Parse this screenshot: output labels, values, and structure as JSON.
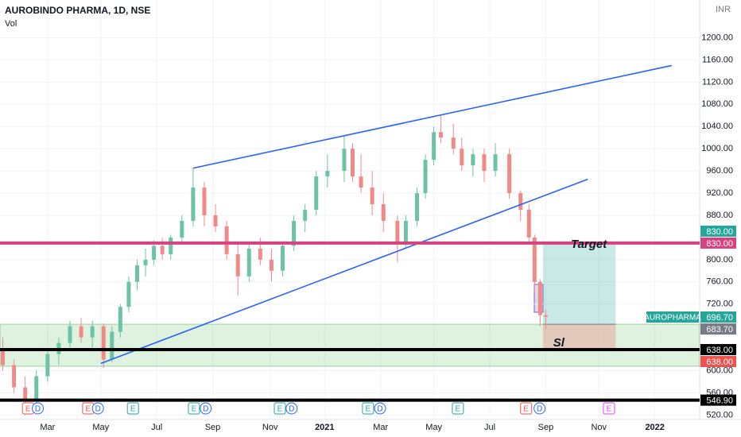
{
  "chart_data": {
    "type": "candlestick",
    "title": "AUROBINDO PHARMA, 1D, NSE",
    "subtitle": "Vol",
    "currency": "INR",
    "xlim": [
      -1.7,
      23.3
    ],
    "ylim": [
      512,
      1268
    ],
    "xticks": [
      {
        "value": 0,
        "label": "Mar"
      },
      {
        "value": 1.9,
        "label": "May"
      },
      {
        "value": 3.9,
        "label": "Jul"
      },
      {
        "value": 5.9,
        "label": "Sep"
      },
      {
        "value": 7.95,
        "label": "Nov"
      },
      {
        "value": 9.9,
        "label": "2021"
      },
      {
        "value": 11.9,
        "label": "Mar"
      },
      {
        "value": 13.8,
        "label": "May"
      },
      {
        "value": 15.8,
        "label": "Jul"
      },
      {
        "value": 17.8,
        "label": "Sep"
      },
      {
        "value": 19.7,
        "label": "Nov"
      },
      {
        "value": 21.7,
        "label": "2022"
      }
    ],
    "yticks": [
      {
        "value": 1200,
        "label": "1200.00"
      },
      {
        "value": 1160,
        "label": "1160.00"
      },
      {
        "value": 1120,
        "label": "1120.00"
      },
      {
        "value": 1080,
        "label": "1080.00"
      },
      {
        "value": 1040,
        "label": "1040.00"
      },
      {
        "value": 1000,
        "label": "1000.00"
      },
      {
        "value": 960,
        "label": "960.00"
      },
      {
        "value": 920,
        "label": "920.00"
      },
      {
        "value": 880,
        "label": "880.00"
      },
      {
        "value": 800,
        "label": "800.00"
      },
      {
        "value": 760,
        "label": "760.00"
      },
      {
        "value": 720,
        "label": "720.00"
      },
      {
        "value": 600,
        "label": "600.00"
      },
      {
        "value": 560,
        "label": "560.00"
      },
      {
        "value": 520,
        "label": "520.00"
      }
    ],
    "up_color": "#6cc3a5",
    "down_color": "#ef8a88",
    "x": [
      -1.6,
      -1.2,
      -0.8,
      -0.4,
      0.0,
      0.4,
      0.8,
      1.2,
      1.6,
      2.0,
      2.3,
      2.6,
      2.9,
      3.2,
      3.5,
      3.8,
      4.1,
      4.4,
      4.8,
      5.2,
      5.6,
      6.0,
      6.4,
      6.8,
      7.2,
      7.6,
      8.0,
      8.4,
      8.8,
      9.2,
      9.6,
      10.0,
      10.6,
      10.9,
      11.2,
      11.6,
      12.0,
      12.5,
      12.8,
      13.2,
      13.5,
      13.8,
      14.05,
      14.5,
      14.8,
      15.2,
      15.6,
      16.0,
      16.5,
      16.9,
      17.2,
      17.4,
      17.6,
      17.8
    ],
    "open": [
      640,
      610,
      570,
      545,
      590,
      630,
      650,
      680,
      660,
      680,
      620,
      670,
      715,
      760,
      790,
      800,
      825,
      810,
      840,
      870,
      930,
      880,
      860,
      810,
      770,
      820,
      800,
      780,
      825,
      870,
      890,
      950,
      960,
      1000,
      950,
      930,
      900,
      870,
      830,
      870,
      920,
      980,
      1030,
      1020,
      1000,
      970,
      990,
      960,
      990,
      920,
      890,
      840,
      760,
      700
    ],
    "high": [
      660,
      620,
      590,
      600,
      640,
      660,
      690,
      695,
      690,
      685,
      680,
      720,
      770,
      800,
      820,
      835,
      840,
      845,
      880,
      965,
      940,
      900,
      870,
      830,
      830,
      840,
      820,
      830,
      880,
      900,
      960,
      990,
      1025,
      1010,
      990,
      960,
      920,
      880,
      880,
      930,
      990,
      1040,
      1060,
      1045,
      1020,
      1000,
      1000,
      1010,
      1000,
      925,
      900,
      845,
      765,
      710
    ],
    "low": [
      600,
      560,
      520,
      530,
      580,
      610,
      640,
      650,
      640,
      605,
      615,
      660,
      705,
      745,
      770,
      790,
      800,
      800,
      830,
      860,
      860,
      850,
      800,
      735,
      760,
      790,
      760,
      770,
      815,
      850,
      880,
      930,
      940,
      940,
      920,
      880,
      850,
      795,
      820,
      860,
      910,
      970,
      1010,
      990,
      960,
      950,
      940,
      950,
      910,
      870,
      830,
      740,
      680,
      675
    ],
    "close": [
      610,
      570,
      545,
      590,
      630,
      650,
      680,
      660,
      680,
      620,
      670,
      715,
      760,
      790,
      800,
      825,
      810,
      840,
      870,
      930,
      880,
      860,
      810,
      770,
      820,
      800,
      780,
      825,
      870,
      890,
      950,
      960,
      1000,
      950,
      930,
      900,
      870,
      830,
      870,
      920,
      980,
      1030,
      1020,
      1000,
      970,
      990,
      960,
      990,
      920,
      890,
      840,
      760,
      700,
      697
    ],
    "trendlines": [
      {
        "x": [
          5.2,
          22.3
        ],
        "y": [
          965,
          1150
        ],
        "color": "#2962ff"
      },
      {
        "x": [
          1.9,
          19.3
        ],
        "y": [
          613,
          945
        ],
        "color": "#2962ff"
      }
    ],
    "hlines": [
      {
        "value": 830,
        "color": "#d6417f"
      },
      {
        "value": 638,
        "color": "#000000"
      },
      {
        "value": 546.9,
        "color": "#000000"
      }
    ],
    "zone": {
      "from": 608,
      "to": 683.7,
      "color": "#4caf50"
    },
    "target_box": {
      "x": [
        17.7,
        20.3
      ],
      "entry": 683.7,
      "target": 830,
      "stop": 638,
      "target_label": "Target",
      "stop_label": "Sl"
    },
    "price_labels": [
      {
        "label": "830.00",
        "value": 830,
        "color": "#26a69a"
      },
      {
        "label": "830.00",
        "value": 830,
        "color": "#d6417f"
      },
      {
        "name": "AUROPHARMA",
        "label": "696.70",
        "value": 696.7,
        "color": "#26a69a"
      },
      {
        "label": "683.70",
        "value": 683.7,
        "color": "#787b86"
      },
      {
        "label": "638.00",
        "value": 638,
        "color": "#000000"
      },
      {
        "label": "638.00",
        "value": 638,
        "color": "#ef5350"
      },
      {
        "label": "546.90",
        "value": 546.9,
        "color": "#000000"
      }
    ],
    "events": [
      {
        "label": "E",
        "x": -0.7,
        "color": "#ef5350"
      },
      {
        "label": "D",
        "x": -0.35,
        "color": "#2962ff"
      },
      {
        "label": "E",
        "x": 1.45,
        "color": "#ef5350"
      },
      {
        "label": "D",
        "x": 1.8,
        "color": "#2962ff"
      },
      {
        "label": "E",
        "x": 3.05,
        "color": "#26a69a"
      },
      {
        "label": "E",
        "x": 5.23,
        "color": "#26a69a"
      },
      {
        "label": "D",
        "x": 5.65,
        "color": "#2962ff"
      },
      {
        "label": "E",
        "x": 8.3,
        "color": "#26a69a"
      },
      {
        "label": "D",
        "x": 8.72,
        "color": "#2962ff"
      },
      {
        "label": "E",
        "x": 11.45,
        "color": "#26a69a"
      },
      {
        "label": "D",
        "x": 11.88,
        "color": "#2962ff"
      },
      {
        "label": "E",
        "x": 14.66,
        "color": "#26a69a"
      },
      {
        "label": "E",
        "x": 17.1,
        "color": "#ef5350"
      },
      {
        "label": "D",
        "x": 17.58,
        "color": "#2962ff"
      },
      {
        "label": "E",
        "x": 20.06,
        "color": "#e040fb"
      }
    ]
  }
}
